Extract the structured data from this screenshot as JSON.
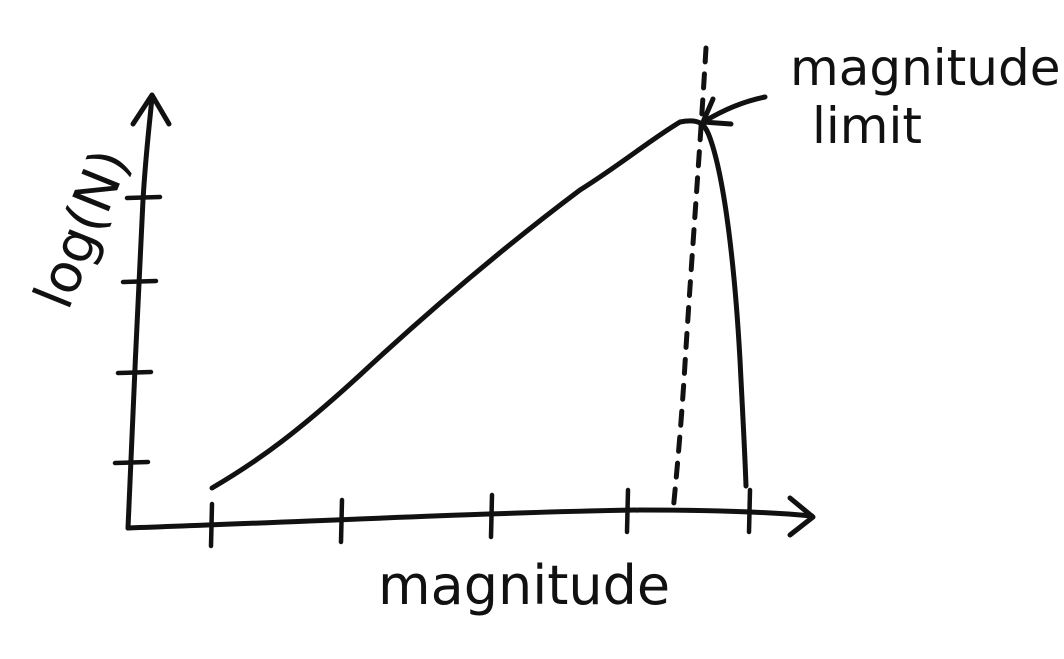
{
  "chart_data": {
    "type": "line",
    "xlabel": "magnitude",
    "ylabel": "log(N)",
    "annotation": "magnitude limit",
    "x_ticks_count": 5,
    "y_ticks_count": 4,
    "tick_labels": "none",
    "grid": false,
    "legend": "none",
    "style": "hand-drawn sketch",
    "ink_color": "#111111",
    "background_color": "#ffffff"
  }
}
